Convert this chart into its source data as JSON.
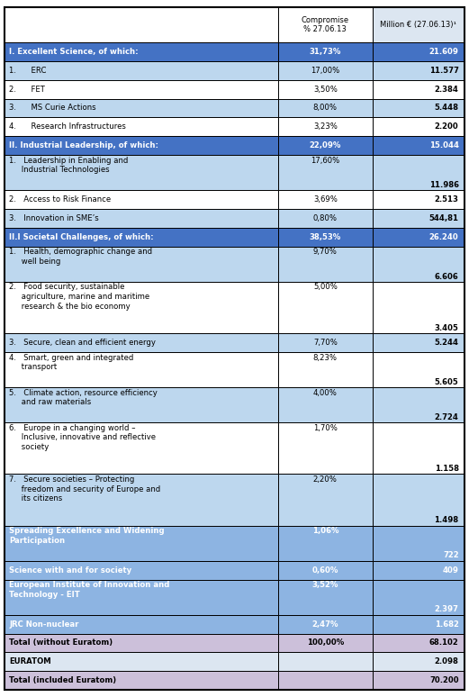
{
  "title_row": [
    "",
    "Compromise\n% 27.06.13",
    "Million € (27.06.13)¹"
  ],
  "rows": [
    {
      "label": "I. Excellent Science, of which:",
      "pct": "31,73%",
      "mil": "21.609",
      "style": "section_blue",
      "bold": true,
      "pct_valign": "center",
      "mil_valign": "center"
    },
    {
      "label": "1.      ERC",
      "pct": "17,00%",
      "mil": "11.577",
      "style": "light_blue",
      "bold": false,
      "pct_valign": "center",
      "mil_valign": "center"
    },
    {
      "label": "2.      FET",
      "pct": "3,50%",
      "mil": "2.384",
      "style": "white",
      "bold": false,
      "pct_valign": "center",
      "mil_valign": "center"
    },
    {
      "label": "3.      MS Curie Actions",
      "pct": "8,00%",
      "mil": "5.448",
      "style": "light_blue",
      "bold": false,
      "pct_valign": "center",
      "mil_valign": "center"
    },
    {
      "label": "4.      Research Infrastructures",
      "pct": "3,23%",
      "mil": "2.200",
      "style": "white",
      "bold": false,
      "pct_valign": "center",
      "mil_valign": "center"
    },
    {
      "label": "II. Industrial Leadership, of which:",
      "pct": "22,09%",
      "mil": "15.044",
      "style": "section_blue",
      "bold": true,
      "pct_valign": "center",
      "mil_valign": "center"
    },
    {
      "label": "1.   Leadership in Enabling and\n     Industrial Technologies",
      "pct": "17,60%",
      "mil": "11.986",
      "style": "light_blue",
      "bold": false,
      "pct_valign": "top",
      "mil_valign": "bottom"
    },
    {
      "label": "2.   Access to Risk Finance",
      "pct": "3,69%",
      "mil": "2.513",
      "style": "white",
      "bold": false,
      "pct_valign": "center",
      "mil_valign": "center"
    },
    {
      "label": "3.   Innovation in SME’s",
      "pct": "0,80%",
      "mil": "544,81",
      "style": "light_blue",
      "bold": false,
      "pct_valign": "center",
      "mil_valign": "center"
    },
    {
      "label": "II.I Societal Challenges, of which:",
      "pct": "38,53%",
      "mil": "26.240",
      "style": "section_blue",
      "bold": true,
      "pct_valign": "center",
      "mil_valign": "center"
    },
    {
      "label": "1.   Health, demographic change and\n     well being",
      "pct": "9,70%",
      "mil": "6.606",
      "style": "light_blue",
      "bold": false,
      "pct_valign": "top",
      "mil_valign": "bottom"
    },
    {
      "label": "2.   Food security, sustainable\n     agriculture, marine and maritime\n     research & the bio economy",
      "pct": "5,00%",
      "mil": "3.405",
      "style": "white",
      "bold": false,
      "pct_valign": "top",
      "mil_valign": "bottom"
    },
    {
      "label": "3.   Secure, clean and efficient energy",
      "pct": "7,70%",
      "mil": "5.244",
      "style": "light_blue",
      "bold": false,
      "pct_valign": "center",
      "mil_valign": "center"
    },
    {
      "label": "4.   Smart, green and integrated\n     transport",
      "pct": "8,23%",
      "mil": "5.605",
      "style": "white",
      "bold": false,
      "pct_valign": "top",
      "mil_valign": "bottom"
    },
    {
      "label": "5.   Climate action, resource efficiency\n     and raw materials",
      "pct": "4,00%",
      "mil": "2.724",
      "style": "light_blue",
      "bold": false,
      "pct_valign": "top",
      "mil_valign": "bottom"
    },
    {
      "label": "6.   Europe in a changing world –\n     Inclusive, innovative and reflective\n     society",
      "pct": "1,70%",
      "mil": "1.158",
      "style": "white",
      "bold": false,
      "pct_valign": "top",
      "mil_valign": "bottom"
    },
    {
      "label": "7.   Secure societies – Protecting\n     freedom and security of Europe and\n     its citizens",
      "pct": "2,20%",
      "mil": "1.498",
      "style": "light_blue",
      "bold": false,
      "pct_valign": "top",
      "mil_valign": "bottom"
    },
    {
      "label": "Spreading Excellence and Widening\nParticipation",
      "pct": "1,06%",
      "mil": "722",
      "style": "section_blue2",
      "bold": true,
      "pct_valign": "top",
      "mil_valign": "bottom"
    },
    {
      "label": "Science with and for society",
      "pct": "0,60%",
      "mil": "409",
      "style": "section_blue2",
      "bold": true,
      "pct_valign": "center",
      "mil_valign": "center"
    },
    {
      "label": "European Institute of Innovation and\nTechnology - EIT",
      "pct": "3,52%",
      "mil": "2.397",
      "style": "section_blue2",
      "bold": true,
      "pct_valign": "top",
      "mil_valign": "bottom"
    },
    {
      "label": "JRC Non-nuclear",
      "pct": "2,47%",
      "mil": "1.682",
      "style": "section_blue2",
      "bold": true,
      "pct_valign": "center",
      "mil_valign": "center"
    },
    {
      "label": "Total (without Euratom)",
      "pct": "100,00%",
      "mil": "68.102",
      "style": "total_lilac",
      "bold": true,
      "pct_valign": "center",
      "mil_valign": "center"
    },
    {
      "label": "EURATOM",
      "pct": "",
      "mil": "2.098",
      "style": "euratom_blue",
      "bold": true,
      "pct_valign": "center",
      "mil_valign": "center"
    },
    {
      "label": "Total (included Euratom)",
      "pct": "",
      "mil": "70.200",
      "style": "total_lilac2",
      "bold": true,
      "pct_valign": "center",
      "mil_valign": "center"
    }
  ],
  "colors": {
    "section_blue": "#4472C4",
    "light_blue": "#BDD7EE",
    "white": "#FFFFFF",
    "section_blue2": "#8DB4E2",
    "total_lilac": "#CCC0DA",
    "euratom_blue": "#DCE6F1",
    "total_lilac2": "#CCC0DA",
    "header_col2_bg": "#FFFFFF",
    "header_col3_bg": "#DCE6F1",
    "border": "#000000"
  },
  "figsize": [
    5.21,
    7.74
  ],
  "dpi": 100
}
